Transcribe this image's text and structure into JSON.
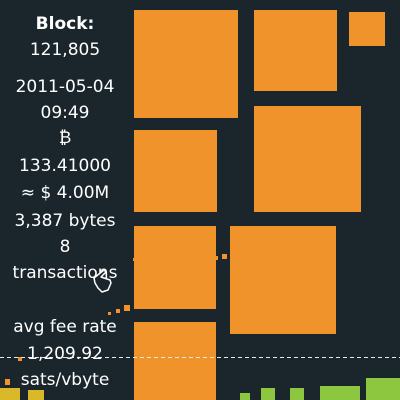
{
  "block": {
    "label": "Block:",
    "height": "121,805",
    "date": "2011-05-04",
    "time": "09:49",
    "currency_symbol": "₿",
    "amount": "133.41000",
    "usd": "≈ $ 4.00M",
    "size": "3,387 bytes",
    "tx_count": "8",
    "tx_label": "transactions",
    "fee_label": "avg fee rate",
    "fee_value": "1,209.92",
    "fee_unit": "sats/vbyte"
  },
  "colors": {
    "background": "#1a262c",
    "tx_block": "#f0932b",
    "low_fee_yellow": "#d9b92a",
    "low_fee_green": "#8dc63f",
    "guide_line": "#e8e8e8"
  },
  "icons": {
    "cursor": "hand-pointer-icon"
  }
}
